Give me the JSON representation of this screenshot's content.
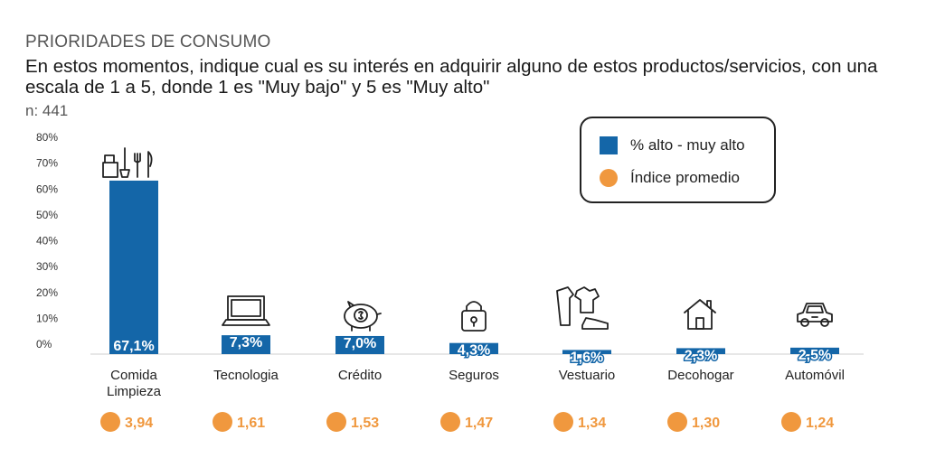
{
  "header": {
    "kicker": "PRIORIDADES DE CONSUMO",
    "question": "En estos momentos, indique cual es su interés en adquirir alguno de estos productos/servicios, con una escala de 1 a 5, donde 1 es \"Muy bajo\" y 5 es \"Muy alto\"",
    "sample": "n: 441"
  },
  "legend": {
    "bar_label": "% alto - muy alto",
    "dot_label": "Índice promedio"
  },
  "colors": {
    "bar": "#1466a8",
    "dot": "#f0983e",
    "axis_text": "#333333"
  },
  "chart_data": {
    "type": "bar",
    "categories": [
      "Comida Limpieza",
      "Tecnologia",
      "Crédito",
      "Seguros",
      "Vestuario",
      "Decohogar",
      "Automóvil"
    ],
    "category_lines": [
      [
        "Comida",
        "Limpieza"
      ],
      [
        "Tecnologia"
      ],
      [
        "Crédito"
      ],
      [
        "Seguros"
      ],
      [
        "Vestuario"
      ],
      [
        "Decohogar"
      ],
      [
        "Automóvil"
      ]
    ],
    "series": [
      {
        "name": "% alto - muy alto",
        "values": [
          67.1,
          7.3,
          7.0,
          4.3,
          1.6,
          2.3,
          2.5
        ],
        "labels": [
          "67,1%",
          "7,3%",
          "7,0%",
          "4,3%",
          "1,6%",
          "2,3%",
          "2,5%"
        ]
      },
      {
        "name": "Índice promedio",
        "values": [
          3.94,
          1.61,
          1.53,
          1.47,
          1.34,
          1.3,
          1.24
        ],
        "labels": [
          "3,94",
          "1,61",
          "1,53",
          "1,47",
          "1,34",
          "1,30",
          "1,24"
        ]
      }
    ],
    "yticks": [
      "0%",
      "10%",
      "20%",
      "30%",
      "40%",
      "50%",
      "60%",
      "70%",
      "80%"
    ],
    "ylim": [
      0,
      80
    ],
    "icons": [
      "cleaning-utensils-icon",
      "laptop-icon",
      "piggy-bank-icon",
      "padlock-icon",
      "clothes-icon",
      "house-icon",
      "car-icon"
    ],
    "legend_position": "top-right",
    "grid": false
  }
}
